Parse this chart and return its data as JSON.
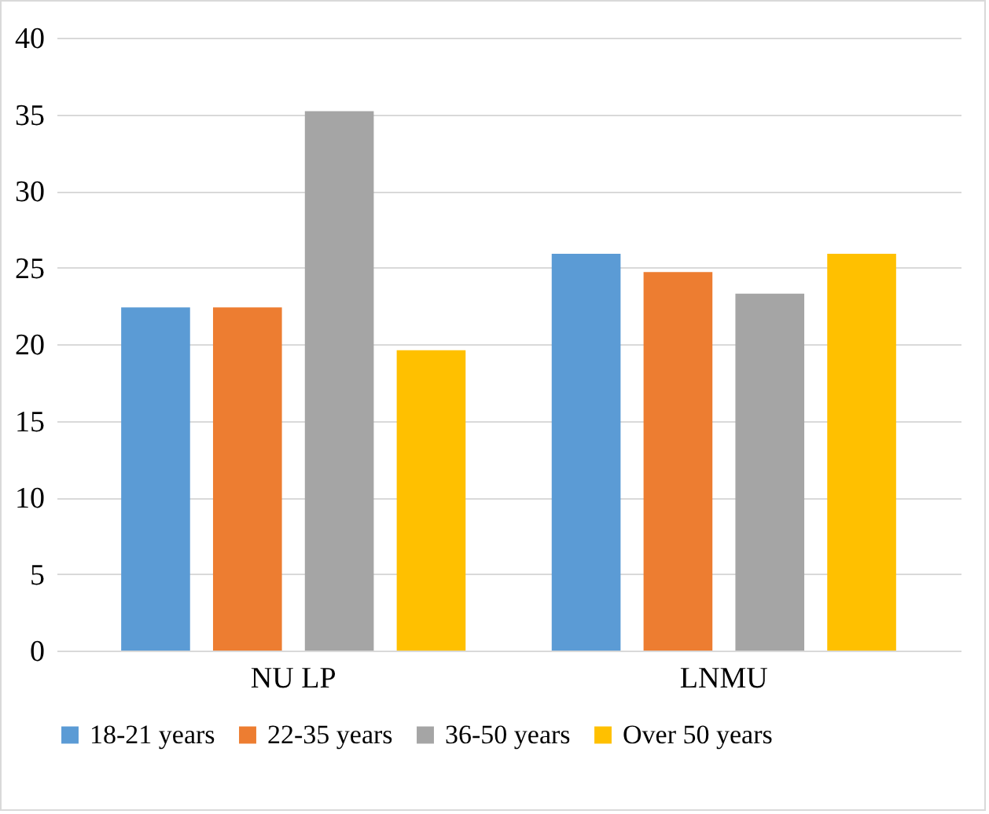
{
  "chart_data": {
    "type": "bar",
    "categories": [
      "NU LP",
      "LNMU"
    ],
    "series": [
      {
        "name": "18-21 years",
        "color": "#5b9bd5",
        "values": [
          22.4,
          25.9
        ]
      },
      {
        "name": "22-35 years",
        "color": "#ed7d31",
        "values": [
          22.4,
          24.7
        ]
      },
      {
        "name": "36-50 years",
        "color": "#a5a5a5",
        "values": [
          35.2,
          23.3
        ]
      },
      {
        "name": "Over 50 years",
        "color": "#ffc000",
        "values": [
          19.6,
          25.9
        ]
      }
    ],
    "ylim": [
      0,
      40
    ],
    "yticks": [
      0,
      5,
      10,
      15,
      20,
      25,
      30,
      35,
      40
    ],
    "grid": "y",
    "legend": "bottom"
  }
}
